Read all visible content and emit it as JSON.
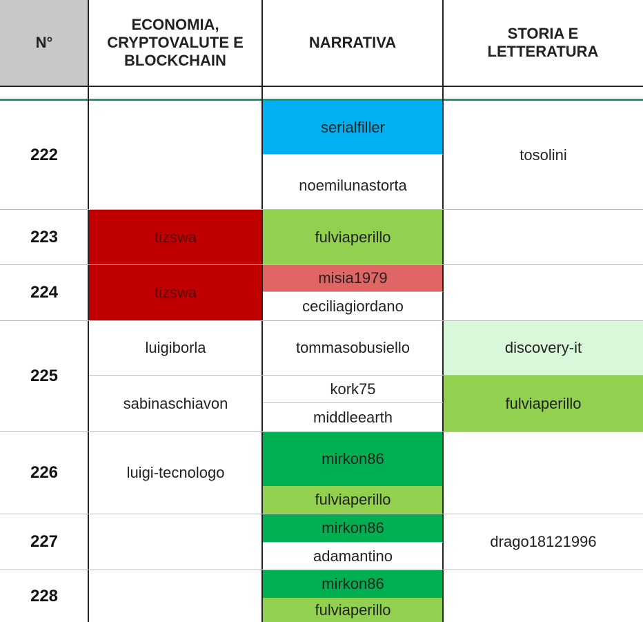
{
  "headers": {
    "num": "N°",
    "economia": "ECONOMIA, CRYPTOVALUTE E BLOCKCHAIN",
    "narrativa": "NARRATIVA",
    "storia": "STORIA E LETTERATURA"
  },
  "colors": {
    "header_num_bg": "#c8c8c8",
    "accent_line": "#1f9b6b",
    "blue": "#00b0f0",
    "dark_red": "#c00000",
    "light_green": "#92d050",
    "salmon": "#e06666",
    "pale_green": "#d9f7d9",
    "green": "#00b050"
  },
  "rows": [
    {
      "num": "222",
      "economia": [],
      "narrativa": [
        "serialfiller",
        "noemilunastorta"
      ],
      "storia": [
        "tosolini"
      ]
    },
    {
      "num": "223",
      "economia": [
        "tizswa"
      ],
      "narrativa": [
        "fulviaperillo"
      ],
      "storia": []
    },
    {
      "num": "224",
      "economia": [
        "tizswa"
      ],
      "narrativa": [
        "misia1979",
        "ceciliagiordano"
      ],
      "storia": []
    },
    {
      "num": "225",
      "economia": [
        "luigiborla",
        "sabinaschiavon"
      ],
      "narrativa": [
        "tommasobusiello",
        "kork75",
        "middleearth"
      ],
      "storia": [
        "discovery-it",
        "fulviaperillo"
      ]
    },
    {
      "num": "226",
      "economia": [
        "luigi-tecnologo"
      ],
      "narrativa": [
        "mirkon86",
        "fulviaperillo"
      ],
      "storia": []
    },
    {
      "num": "227",
      "economia": [],
      "narrativa": [
        "mirkon86",
        "adamantino"
      ],
      "storia": [
        "drago18121996"
      ]
    },
    {
      "num": "228",
      "economia": [],
      "narrativa": [
        "mirkon86",
        "fulviaperillo"
      ],
      "storia": []
    }
  ]
}
